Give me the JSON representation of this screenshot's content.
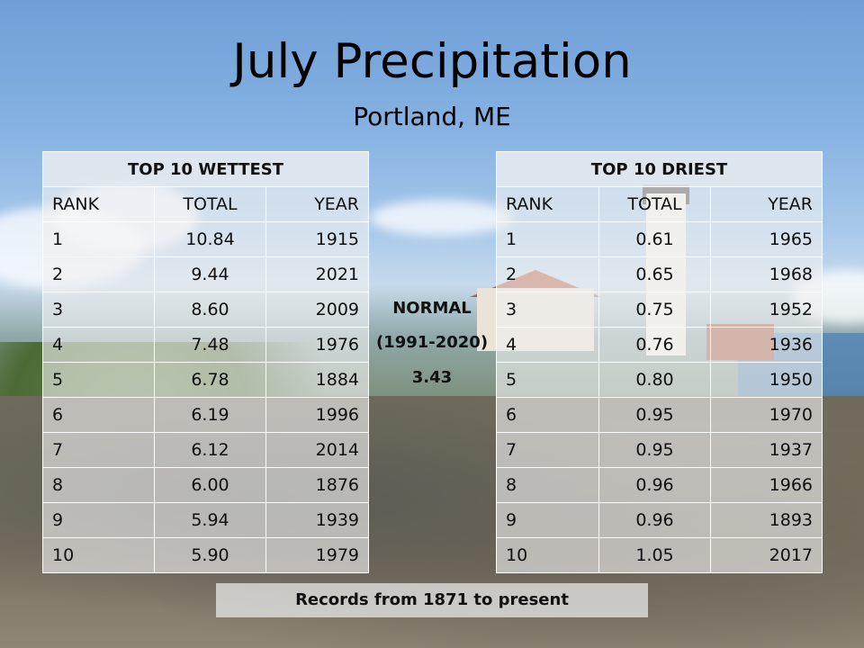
{
  "title": "July Precipitation",
  "subtitle": "Portland, ME",
  "wettest": {
    "header": "TOP 10 WETTEST",
    "columns": [
      "RANK",
      "TOTAL",
      "YEAR"
    ],
    "rows": [
      [
        "1",
        "10.84",
        "1915"
      ],
      [
        "2",
        "9.44",
        "2021"
      ],
      [
        "3",
        "8.60",
        "2009"
      ],
      [
        "4",
        "7.48",
        "1976"
      ],
      [
        "5",
        "6.78",
        "1884"
      ],
      [
        "6",
        "6.19",
        "1996"
      ],
      [
        "7",
        "6.12",
        "2014"
      ],
      [
        "8",
        "6.00",
        "1876"
      ],
      [
        "9",
        "5.94",
        "1939"
      ],
      [
        "10",
        "5.90",
        "1979"
      ]
    ]
  },
  "driest": {
    "header": "TOP 10 DRIEST",
    "columns": [
      "RANK",
      "TOTAL",
      "YEAR"
    ],
    "rows": [
      [
        "1",
        "0.61",
        "1965"
      ],
      [
        "2",
        "0.65",
        "1968"
      ],
      [
        "3",
        "0.75",
        "1952"
      ],
      [
        "4",
        "0.76",
        "1936"
      ],
      [
        "5",
        "0.80",
        "1950"
      ],
      [
        "6",
        "0.95",
        "1970"
      ],
      [
        "7",
        "0.95",
        "1937"
      ],
      [
        "8",
        "0.96",
        "1966"
      ],
      [
        "9",
        "0.96",
        "1893"
      ],
      [
        "10",
        "1.05",
        "2017"
      ]
    ]
  },
  "normal": {
    "label": "NORMAL",
    "period": "(1991-2020)",
    "value": "3.43"
  },
  "footer": "Records from 1871 to present"
}
